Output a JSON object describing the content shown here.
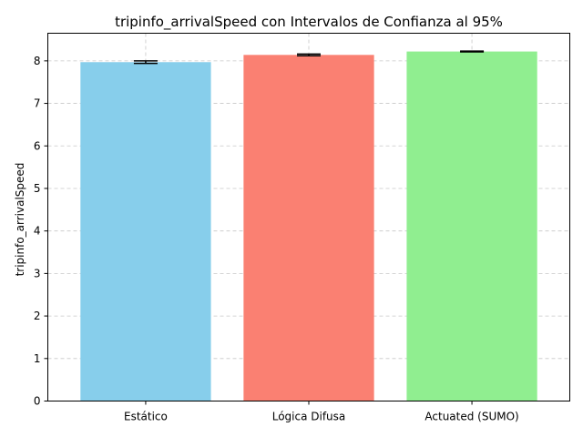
{
  "chart_data": {
    "type": "bar",
    "title": "tripinfo_arrivalSpeed con Intervalos de Confianza al 95%",
    "xlabel": "",
    "ylabel": "tripinfo_arrivalSpeed",
    "categories": [
      "Estático",
      "Lógica Difusa",
      "Actuated (SUMO)"
    ],
    "values": [
      7.97,
      8.14,
      8.22
    ],
    "error": [
      0.03,
      0.02,
      0.01
    ],
    "colors": [
      "#87ceeb",
      "#fa8072",
      "#90ee90"
    ],
    "ylim": [
      0,
      8.65
    ],
    "yticks": [
      0,
      1,
      2,
      3,
      4,
      5,
      6,
      7,
      8
    ],
    "grid": true
  }
}
